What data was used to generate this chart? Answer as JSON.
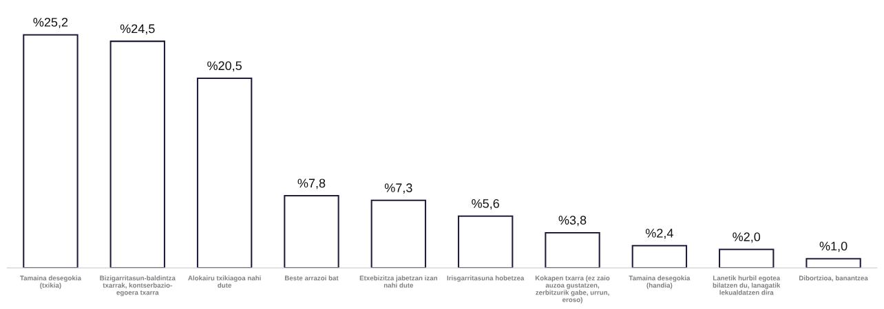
{
  "chart_data": {
    "type": "bar",
    "categories": [
      "Tamaina desegokia\n(txikia)",
      "Bizigarritasun-baldintza\ntxarrak, kontserbazio-\negoera txarra",
      "Alokairu txikiagoa nahi\ndute",
      "Beste arrazoi bat",
      "Etxebizitza jabetzan izan\nnahi dute",
      "Irisgarritasuna hobetzea",
      "Kokapen txarra (ez zaio\nauzoa gustatzen,\nzerbitzurik gabe, urrun,\neroso)",
      "Tamaina desegokia\n(handia)",
      "Lanetik hurbil egotea\nbilatzen du, lanagatik\nlekualdatzen dira",
      "Dibortzioa, banantzea"
    ],
    "values": [
      25.2,
      24.5,
      20.5,
      7.8,
      7.3,
      5.6,
      3.8,
      2.4,
      2.0,
      1.0
    ],
    "value_labels": [
      "%25,2",
      "%24,5",
      "%20,5",
      "%7,8",
      "%7,3",
      "%5,6",
      "%3,8",
      "%2,4",
      "%2,0",
      "%1,0"
    ],
    "color": "#1f1d3d",
    "grid": false,
    "legend": false
  }
}
